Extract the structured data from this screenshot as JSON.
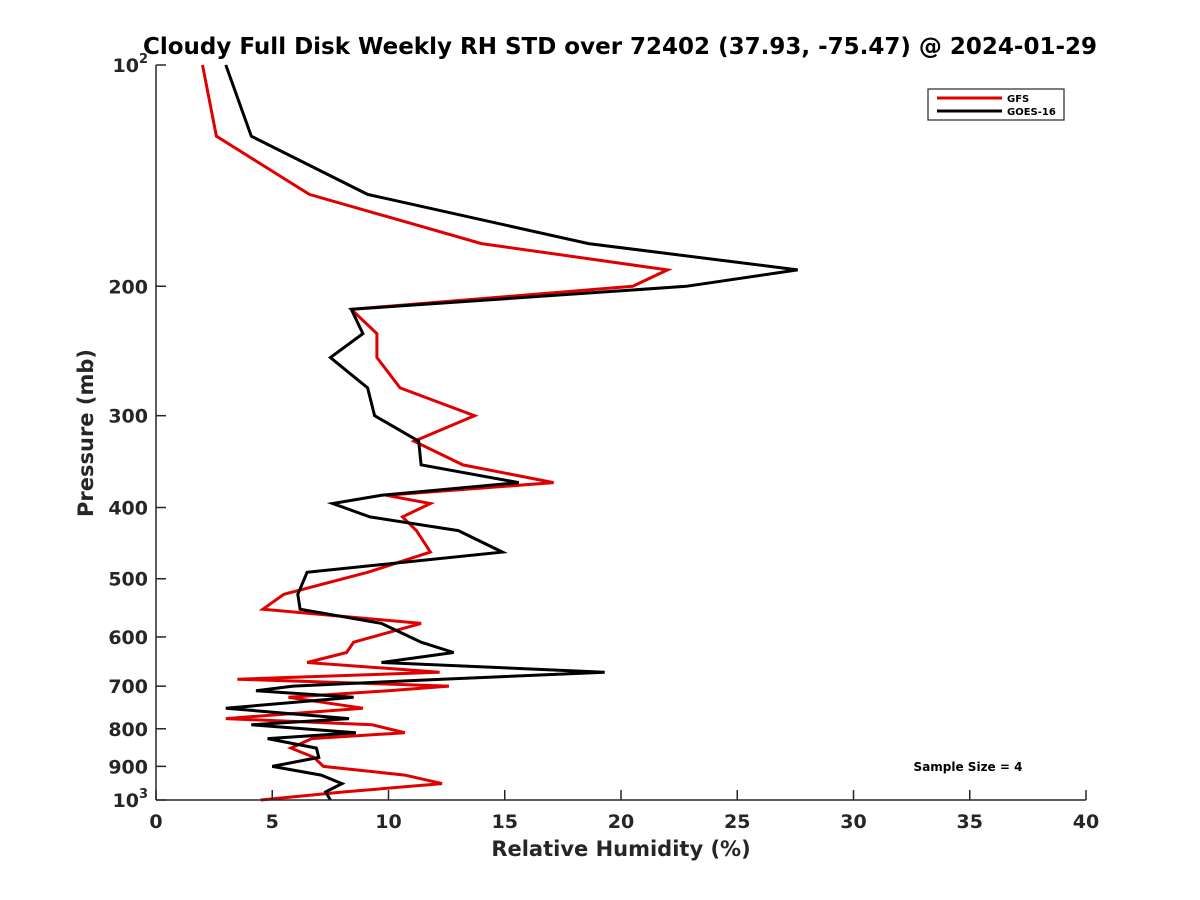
{
  "chart_data": {
    "type": "line",
    "title": "Cloudy Full Disk Weekly RH STD over 72402 (37.93, -75.47) @ 2024-01-29",
    "xlabel": "Relative Humidity (%)",
    "ylabel": "Pressure (mb)",
    "xlim": [
      0,
      40
    ],
    "ylim": [
      100,
      1000
    ],
    "y_scale": "log",
    "y_reversed": true,
    "grid": false,
    "x_ticks": [
      {
        "value": 0,
        "label": "0"
      },
      {
        "value": 5,
        "label": "5"
      },
      {
        "value": 10,
        "label": "10"
      },
      {
        "value": 15,
        "label": "15"
      },
      {
        "value": 20,
        "label": "20"
      },
      {
        "value": 25,
        "label": "25"
      },
      {
        "value": 30,
        "label": "30"
      },
      {
        "value": 35,
        "label": "35"
      },
      {
        "value": 40,
        "label": "40"
      }
    ],
    "y_ticks": [
      {
        "value": 100,
        "base": "10",
        "exp": "2"
      },
      {
        "value": 200,
        "label": "200"
      },
      {
        "value": 300,
        "label": "300"
      },
      {
        "value": 400,
        "label": "400"
      },
      {
        "value": 500,
        "label": "500"
      },
      {
        "value": 600,
        "label": "600"
      },
      {
        "value": 700,
        "label": "700"
      },
      {
        "value": 800,
        "label": "800"
      },
      {
        "value": 900,
        "label": "900"
      },
      {
        "value": 1000,
        "base": "10",
        "exp": "3"
      }
    ],
    "legend_position": "top-right",
    "annotation": "Sample Size = 4",
    "series": [
      {
        "name": "GFS",
        "color": "#e00000",
        "points": [
          [
            2.0,
            100
          ],
          [
            2.6,
            125
          ],
          [
            6.6,
            150
          ],
          [
            14.0,
            175
          ],
          [
            22.0,
            190
          ],
          [
            20.5,
            200
          ],
          [
            8.4,
            215
          ],
          [
            9.5,
            232
          ],
          [
            9.5,
            250
          ],
          [
            10.5,
            275
          ],
          [
            13.7,
            300
          ],
          [
            11.1,
            325
          ],
          [
            13.2,
            350
          ],
          [
            17.1,
            370
          ],
          [
            9.9,
            385
          ],
          [
            11.8,
            395
          ],
          [
            10.6,
            412
          ],
          [
            11.2,
            430
          ],
          [
            11.8,
            460
          ],
          [
            9.1,
            490
          ],
          [
            5.5,
            525
          ],
          [
            4.6,
            550
          ],
          [
            11.4,
            575
          ],
          [
            8.5,
            610
          ],
          [
            8.2,
            630
          ],
          [
            6.5,
            650
          ],
          [
            12.2,
            670
          ],
          [
            3.5,
            685
          ],
          [
            12.6,
            700
          ],
          [
            10.0,
            710
          ],
          [
            5.7,
            725
          ],
          [
            8.9,
            750
          ],
          [
            3.0,
            775
          ],
          [
            9.3,
            790
          ],
          [
            10.7,
            810
          ],
          [
            6.7,
            825
          ],
          [
            5.8,
            850
          ],
          [
            6.8,
            875
          ],
          [
            7.2,
            900
          ],
          [
            10.7,
            925
          ],
          [
            12.3,
            950
          ],
          [
            8.1,
            975
          ],
          [
            4.5,
            1000
          ]
        ]
      },
      {
        "name": "GOES-16",
        "color": "#000000",
        "points": [
          [
            3.0,
            100
          ],
          [
            4.1,
            125
          ],
          [
            9.1,
            150
          ],
          [
            18.6,
            175
          ],
          [
            27.6,
            190
          ],
          [
            22.8,
            200
          ],
          [
            8.4,
            215
          ],
          [
            8.9,
            232
          ],
          [
            7.5,
            250
          ],
          [
            9.1,
            275
          ],
          [
            9.4,
            300
          ],
          [
            11.3,
            325
          ],
          [
            11.4,
            350
          ],
          [
            15.6,
            370
          ],
          [
            9.7,
            385
          ],
          [
            7.6,
            395
          ],
          [
            9.2,
            412
          ],
          [
            13.0,
            430
          ],
          [
            14.9,
            460
          ],
          [
            6.5,
            490
          ],
          [
            6.1,
            525
          ],
          [
            6.2,
            550
          ],
          [
            9.7,
            575
          ],
          [
            11.4,
            610
          ],
          [
            12.8,
            630
          ],
          [
            9.7,
            650
          ],
          [
            19.3,
            670
          ],
          [
            12.3,
            685
          ],
          [
            5.9,
            700
          ],
          [
            4.3,
            710
          ],
          [
            8.5,
            725
          ],
          [
            3.0,
            750
          ],
          [
            8.3,
            775
          ],
          [
            4.1,
            790
          ],
          [
            8.6,
            810
          ],
          [
            4.8,
            825
          ],
          [
            6.9,
            850
          ],
          [
            7.0,
            875
          ],
          [
            5.0,
            900
          ],
          [
            7.1,
            925
          ],
          [
            8.0,
            950
          ],
          [
            7.3,
            975
          ],
          [
            7.5,
            1000
          ]
        ]
      }
    ]
  }
}
